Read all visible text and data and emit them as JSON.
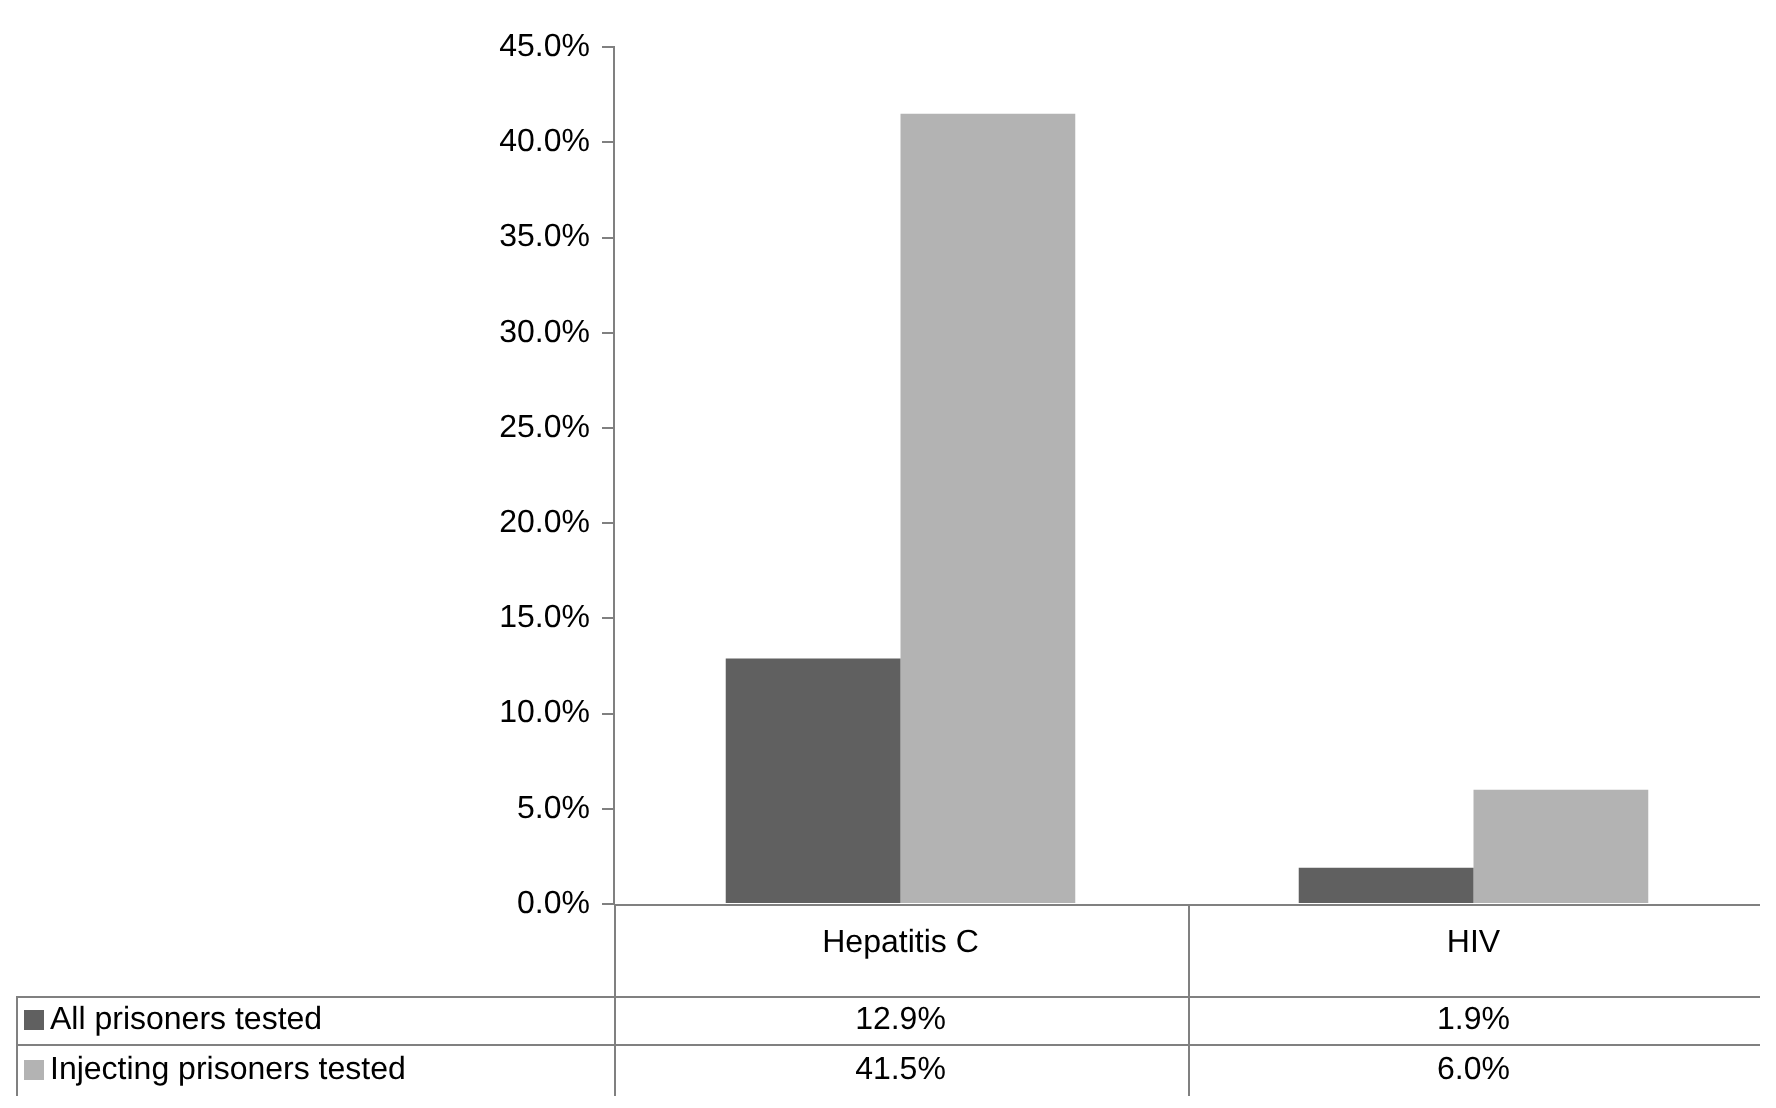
{
  "chart_data": {
    "type": "bar",
    "categories": [
      "Hepatitis C",
      "HIV"
    ],
    "series": [
      {
        "name": "All prisoners tested",
        "color": "#606060",
        "values": [
          12.9,
          1.9
        ],
        "value_labels": [
          "12.9%",
          "1.9%"
        ]
      },
      {
        "name": "Injecting prisoners tested",
        "color": "#b3b3b3",
        "values": [
          41.5,
          6.0
        ],
        "value_labels": [
          "41.5%",
          "6.0%"
        ]
      }
    ],
    "ylim": [
      0,
      45
    ],
    "yticks": [
      {
        "value": 0,
        "label": "0.0%"
      },
      {
        "value": 5,
        "label": "5.0%"
      },
      {
        "value": 10,
        "label": "10.0%"
      },
      {
        "value": 15,
        "label": "15.0%"
      },
      {
        "value": 20,
        "label": "20.0%"
      },
      {
        "value": 25,
        "label": "25.0%"
      },
      {
        "value": 30,
        "label": "30.0%"
      },
      {
        "value": 35,
        "label": "35.0%"
      },
      {
        "value": 40,
        "label": "40.0%"
      },
      {
        "value": 45,
        "label": "45.0%"
      }
    ],
    "grid": false,
    "legend": "bottom left"
  }
}
